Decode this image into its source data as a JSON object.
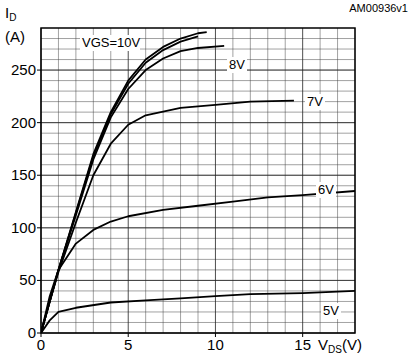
{
  "chart_data": {
    "type": "line",
    "annotation": "AM00936v1",
    "y_label": {
      "text": "I",
      "sub": "D",
      "unit": "(A)"
    },
    "x_label": {
      "text": "V",
      "sub": "DS",
      "unit": "(V)"
    },
    "xlim": [
      0,
      18
    ],
    "ylim": [
      0,
      290
    ],
    "xticks": [
      0,
      5,
      10,
      15
    ],
    "yticks": [
      0,
      50,
      100,
      150,
      200,
      250
    ],
    "grid": true,
    "color": "#000000",
    "series": [
      {
        "name": "VGS=10V",
        "x": [
          0,
          0.5,
          1,
          2,
          3,
          4,
          5,
          6,
          7,
          8,
          9,
          9.5
        ],
        "values": [
          0,
          30,
          60,
          115,
          170,
          210,
          240,
          260,
          272,
          280,
          285,
          286
        ]
      },
      {
        "x": [
          0,
          0.5,
          1,
          2,
          3,
          4,
          5,
          6,
          7,
          8,
          9
        ],
        "values": [
          0,
          30,
          60,
          114,
          168,
          208,
          237,
          257,
          269,
          277,
          282
        ]
      },
      {
        "name": "8V",
        "x": [
          0,
          0.5,
          1,
          2,
          3,
          4,
          5,
          6,
          7,
          8,
          9,
          10.5
        ],
        "values": [
          0,
          30,
          60,
          112,
          165,
          205,
          232,
          250,
          261,
          268,
          271,
          273
        ]
      },
      {
        "name": "7V",
        "x": [
          0,
          0.5,
          1,
          2,
          3,
          4,
          5,
          6,
          8,
          10,
          12,
          14.5
        ],
        "values": [
          0,
          30,
          58,
          105,
          150,
          180,
          198,
          207,
          214,
          217,
          220,
          221
        ]
      },
      {
        "name": "6V",
        "x": [
          0,
          0.5,
          1,
          2,
          3,
          4,
          5,
          7,
          9,
          11,
          13,
          15,
          18
        ],
        "values": [
          0,
          35,
          60,
          85,
          98,
          106,
          111,
          117,
          121,
          125,
          129,
          131,
          135
        ]
      },
      {
        "name": "5V",
        "x": [
          0,
          0.5,
          1,
          2,
          4,
          6,
          8,
          10,
          12,
          15,
          18
        ],
        "values": [
          0,
          12,
          20,
          24,
          29,
          31,
          33,
          35,
          37,
          38,
          40
        ]
      }
    ]
  }
}
